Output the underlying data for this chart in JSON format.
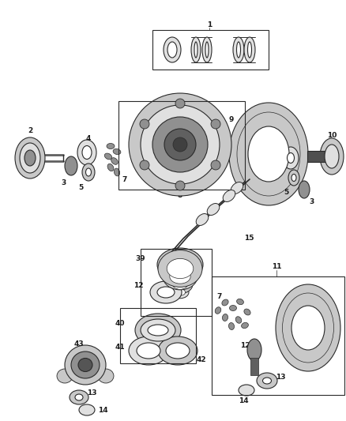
{
  "bg_color": "#ffffff",
  "fig_width": 4.38,
  "fig_height": 5.33,
  "dpi": 100,
  "line_color": "#2a2a2a",
  "label_color": "#1a1a1a",
  "font_size": 6.5,
  "gray_dark": "#606060",
  "gray_mid": "#909090",
  "gray_light": "#c8c8c8",
  "gray_vlight": "#e0e0e0",
  "gray_fill": "#b0b0b0"
}
